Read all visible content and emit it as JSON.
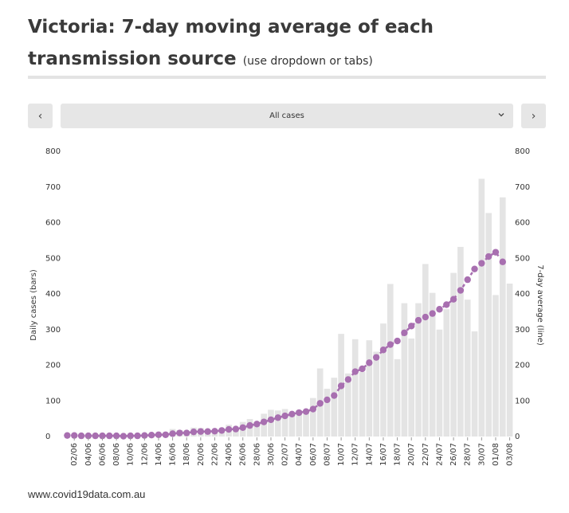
{
  "header": {
    "title_main": "Victoria: 7-day moving average of each transmission source",
    "title_sub": "(use dropdown or tabs)"
  },
  "controls": {
    "prev_label": "‹",
    "next_label": "›",
    "dropdown_value": "All cases",
    "dropdown_icon": "chevron-down-icon"
  },
  "footer": {
    "source": "www.covid19data.com.au"
  },
  "chart_data": {
    "type": "bar",
    "title": "",
    "xlabel": "",
    "ylabel": "Daily cases (bars)",
    "y2label": "7-day average (line)",
    "ylim": [
      0,
      800
    ],
    "yticks": [
      0,
      100,
      200,
      300,
      400,
      500,
      600,
      700,
      800
    ],
    "bar_color": "#e4e4e4",
    "line_color": "#a86fb0",
    "categories": [
      "01/06",
      "02/06",
      "03/06",
      "04/06",
      "05/06",
      "06/06",
      "07/06",
      "08/06",
      "09/06",
      "10/06",
      "11/06",
      "12/06",
      "13/06",
      "14/06",
      "15/06",
      "16/06",
      "17/06",
      "18/06",
      "19/06",
      "20/06",
      "21/06",
      "22/06",
      "23/06",
      "24/06",
      "25/06",
      "26/06",
      "27/06",
      "28/06",
      "29/06",
      "30/06",
      "01/07",
      "02/07",
      "03/07",
      "04/07",
      "05/07",
      "06/07",
      "07/07",
      "08/07",
      "09/07",
      "10/07",
      "11/07",
      "12/07",
      "13/07",
      "14/07",
      "15/07",
      "16/07",
      "17/07",
      "18/07",
      "19/07",
      "20/07",
      "21/07",
      "22/07",
      "23/07",
      "24/07",
      "25/07",
      "26/07",
      "27/07",
      "28/07",
      "29/07",
      "30/07",
      "31/07",
      "01/08",
      "02/08",
      "03/08"
    ],
    "tick_labels": [
      "02/06",
      "04/06",
      "06/06",
      "08/06",
      "10/06",
      "12/06",
      "14/06",
      "16/06",
      "18/06",
      "20/06",
      "22/06",
      "24/06",
      "26/06",
      "28/06",
      "30/06",
      "02/07",
      "04/07",
      "06/07",
      "08/07",
      "10/07",
      "12/07",
      "14/07",
      "16/07",
      "18/07",
      "20/07",
      "22/07",
      "24/07",
      "26/07",
      "28/07",
      "30/07",
      "01/08",
      "03/08"
    ],
    "series": [
      {
        "name": "Daily cases",
        "kind": "bar",
        "values": [
          2,
          4,
          2,
          1,
          1,
          2,
          0,
          3,
          0,
          2,
          4,
          5,
          6,
          6,
          8,
          21,
          18,
          13,
          25,
          24,
          19,
          16,
          20,
          33,
          20,
          41,
          49,
          41,
          64,
          75,
          73,
          77,
          66,
          74,
          67,
          108,
          191,
          134,
          165,
          288,
          177,
          273,
          181,
          270,
          238,
          317,
          428,
          217,
          374,
          275,
          374,
          484,
          403,
          300,
          357,
          459,
          532,
          384,
          295,
          723,
          627,
          397,
          671,
          429
        ]
      },
      {
        "name": "7-day average",
        "kind": "line",
        "values": [
          3,
          3,
          2,
          2,
          2,
          2,
          2,
          2,
          1,
          2,
          2,
          3,
          4,
          5,
          5,
          8,
          10,
          10,
          13,
          14,
          14,
          15,
          17,
          20,
          21,
          25,
          31,
          35,
          41,
          47,
          53,
          58,
          63,
          67,
          70,
          77,
          93,
          103,
          115,
          142,
          160,
          182,
          190,
          207,
          222,
          243,
          258,
          268,
          291,
          310,
          326,
          335,
          345,
          357,
          370,
          385,
          410,
          440,
          470,
          486,
          505,
          517,
          490,
          null
        ]
      }
    ]
  }
}
